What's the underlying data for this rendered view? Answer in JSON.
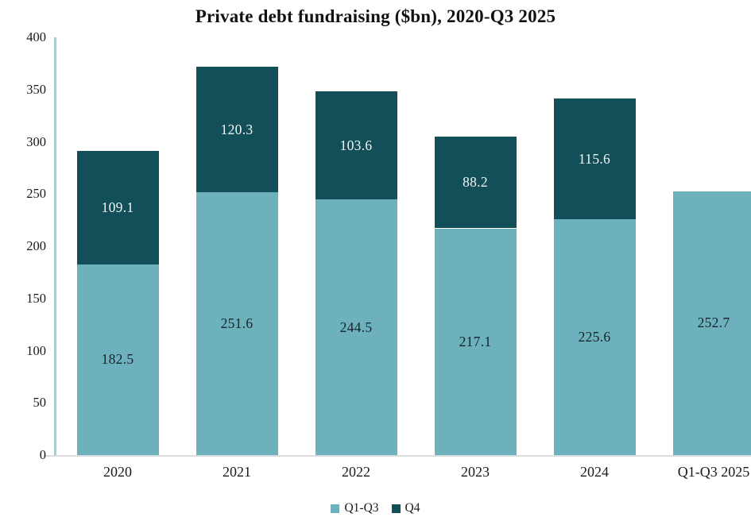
{
  "title": "Private debt fundraising ($bn), 2020-Q3 2025",
  "chart_data": {
    "type": "bar",
    "stacked": true,
    "title": "Private debt fundraising ($bn), 2020-Q3 2025",
    "categories": [
      "2020",
      "2021",
      "2022",
      "2023",
      "2024",
      "Q1-Q3 2025"
    ],
    "series": [
      {
        "name": "Q1-Q3",
        "color": "#6db1bd",
        "label_color": "#17252a",
        "values": [
          182.5,
          251.6,
          244.5,
          217.1,
          225.6,
          252.7
        ]
      },
      {
        "name": "Q4",
        "color": "#124f58",
        "label_color": "#f3f7f7",
        "values": [
          109.1,
          120.3,
          103.6,
          88.2,
          115.6,
          null
        ]
      }
    ],
    "totals": [
      291.6,
      371.9,
      348.1,
      305.3,
      341.2,
      252.7
    ],
    "xlabel": "",
    "ylabel": "",
    "ylim": [
      0,
      400
    ],
    "yticks": [
      0,
      50,
      100,
      150,
      200,
      250,
      300,
      350,
      400
    ],
    "grid": false,
    "legend_position": "bottom",
    "axis_line_color": "#a9cbd1",
    "baseline_color": "#d9dddd"
  }
}
